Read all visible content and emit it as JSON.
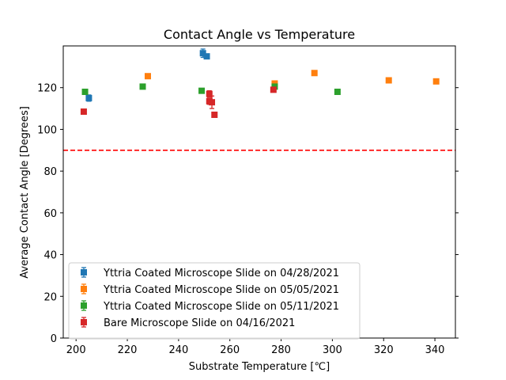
{
  "chart_data": {
    "type": "scatter",
    "title": "Contact Angle vs Temperature",
    "xlabel": "Substrate Temperature [℃]",
    "ylabel": "Average Contact Angle [Degrees]",
    "xlim": [
      195,
      348
    ],
    "ylim": [
      0,
      140
    ],
    "xticks": [
      200,
      220,
      240,
      260,
      280,
      300,
      320,
      340
    ],
    "yticks": [
      0,
      20,
      40,
      60,
      80,
      100,
      120
    ],
    "grid": false,
    "legend_position": "lower-left",
    "reference_line": {
      "y": 90,
      "color": "#ff0000",
      "style": "dashed"
    },
    "series": [
      {
        "name": "Yttria Coated Microscope Slide on 04/28/2021",
        "color": "#1f77b4",
        "points": [
          {
            "x": 205,
            "y": 115,
            "err": 1.5
          },
          {
            "x": 249.5,
            "y": 136.5,
            "err": 2
          },
          {
            "x": 251,
            "y": 135,
            "err": 1
          }
        ]
      },
      {
        "name": "Yttria Coated Microscope Slide on 05/05/2021",
        "color": "#ff7f0e",
        "points": [
          {
            "x": 228,
            "y": 125.5,
            "err": 1
          },
          {
            "x": 277.5,
            "y": 122,
            "err": 1
          },
          {
            "x": 293,
            "y": 127,
            "err": 1
          },
          {
            "x": 322,
            "y": 123.5,
            "err": 1
          },
          {
            "x": 340.5,
            "y": 123,
            "err": 1
          }
        ]
      },
      {
        "name": "Yttria Coated Microscope Slide on 05/11/2021",
        "color": "#2ca02c",
        "points": [
          {
            "x": 203.5,
            "y": 118,
            "err": 1
          },
          {
            "x": 226,
            "y": 120.5,
            "err": 1
          },
          {
            "x": 249,
            "y": 118.5,
            "err": 1
          },
          {
            "x": 277.5,
            "y": 120.5,
            "err": 1
          },
          {
            "x": 302,
            "y": 118,
            "err": 1
          }
        ]
      },
      {
        "name": "Bare Microscope Slide on 04/16/2021",
        "color": "#d62728",
        "points": [
          {
            "x": 203,
            "y": 108.5,
            "err": 1
          },
          {
            "x": 252,
            "y": 117,
            "err": 1.5
          },
          {
            "x": 252,
            "y": 113.5,
            "err": 1.5
          },
          {
            "x": 253,
            "y": 113,
            "err": 3
          },
          {
            "x": 254,
            "y": 107,
            "err": 1
          },
          {
            "x": 277,
            "y": 119,
            "err": 1
          }
        ]
      }
    ]
  }
}
